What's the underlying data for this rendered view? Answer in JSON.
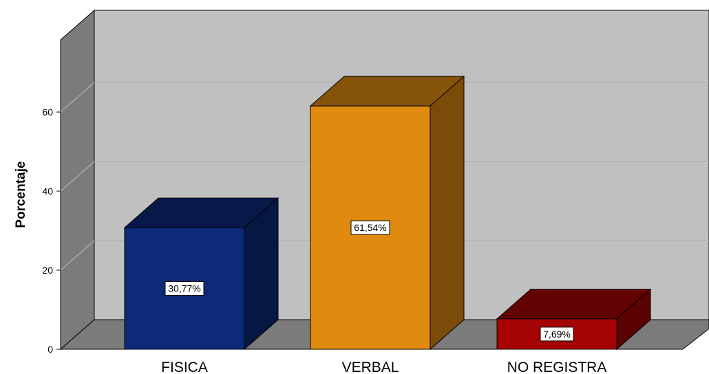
{
  "chart_data": {
    "type": "bar",
    "style": "3d",
    "categories": [
      "FISICA",
      "VERBAL",
      "NO REGISTRA"
    ],
    "values": [
      30.77,
      61.54,
      7.69
    ],
    "data_labels": [
      "30,77%",
      "61,54%",
      "7,69%"
    ],
    "colors": [
      "#0d2a7a",
      "#e08a10",
      "#a50303"
    ],
    "ylabel": "Porcentaje",
    "yticks": [
      "0",
      "20",
      "40",
      "60"
    ],
    "ylim": [
      0,
      80
    ],
    "grid": true,
    "background_color": "#c0c0c0"
  }
}
